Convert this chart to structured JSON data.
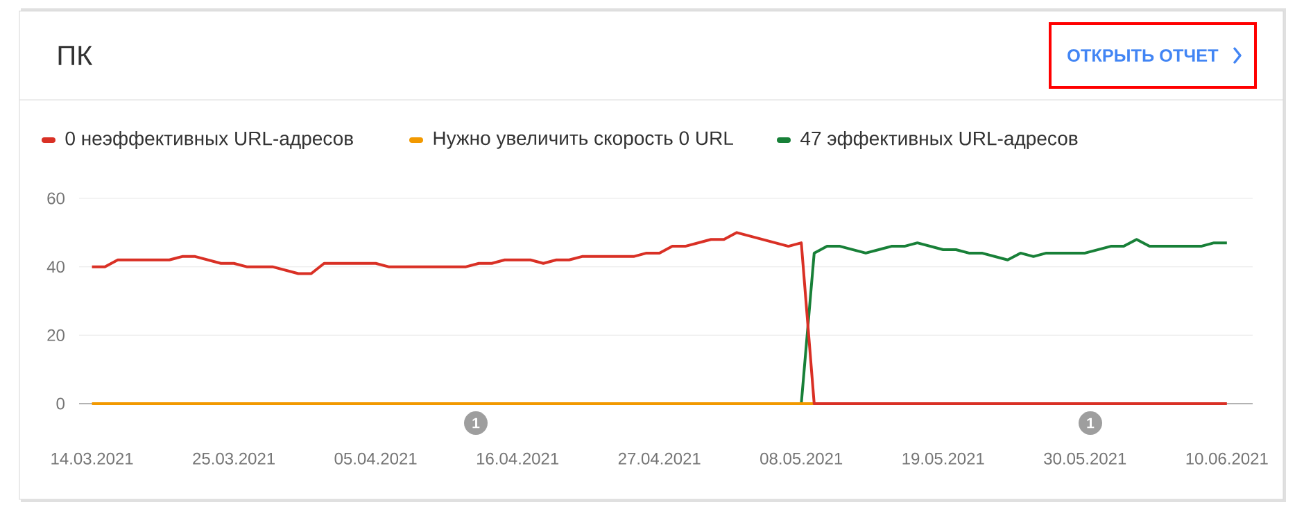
{
  "chart_data": {
    "type": "line",
    "title": "ПК",
    "annotations": [
      "ОТКРЫТЬ ОТЧЕТ",
      "1",
      "1"
    ],
    "xlim": [
      "2021-03-13",
      "2021-06-12"
    ],
    "ylim": [
      0,
      60
    ],
    "yticks": [
      0,
      20,
      40,
      60
    ],
    "xticks": [
      {
        "value": "2021-03-14",
        "label": "14.03.2021"
      },
      {
        "value": "2021-03-25",
        "label": "25.03.2021"
      },
      {
        "value": "2021-04-05",
        "label": "05.04.2021"
      },
      {
        "value": "2021-04-16",
        "label": "16.04.2021"
      },
      {
        "value": "2021-04-27",
        "label": "27.04.2021"
      },
      {
        "value": "2021-05-08",
        "label": "08.05.2021"
      },
      {
        "value": "2021-05-19",
        "label": "19.05.2021"
      },
      {
        "value": "2021-05-30",
        "label": "30.05.2021"
      },
      {
        "value": "2021-06-10",
        "label": "10.06.2021"
      }
    ],
    "grid": "y",
    "legend": "top",
    "line_style": "solid",
    "series": [
      {
        "name": "0 неэффективных URL-адресов",
        "color": "#d93025",
        "x": [
          "2021-03-14",
          "2021-03-15",
          "2021-03-16",
          "2021-03-20",
          "2021-03-21",
          "2021-03-22",
          "2021-03-24",
          "2021-03-25",
          "2021-03-26",
          "2021-03-28",
          "2021-03-30",
          "2021-03-31",
          "2021-04-01",
          "2021-04-05",
          "2021-04-06",
          "2021-04-12",
          "2021-04-13",
          "2021-04-14",
          "2021-04-15",
          "2021-04-17",
          "2021-04-18",
          "2021-04-19",
          "2021-04-20",
          "2021-04-21",
          "2021-04-25",
          "2021-04-26",
          "2021-04-27",
          "2021-04-28",
          "2021-04-29",
          "2021-05-01",
          "2021-05-02",
          "2021-05-03",
          "2021-05-07",
          "2021-05-08",
          "2021-05-09",
          "2021-06-10"
        ],
        "values": [
          40,
          40,
          42,
          42,
          43,
          43,
          41,
          41,
          40,
          40,
          38,
          38,
          41,
          41,
          40,
          40,
          41,
          41,
          42,
          42,
          41,
          42,
          42,
          43,
          43,
          44,
          44,
          46,
          46,
          48,
          48,
          50,
          46,
          47,
          0,
          0
        ]
      },
      {
        "name": "Нужно увеличить скорость 0 URL",
        "color": "#f29900",
        "x": [
          "2021-03-14",
          "2021-05-09"
        ],
        "values": [
          0,
          0
        ]
      },
      {
        "name": "47 эффективных URL-адресов",
        "color": "#188038",
        "x": [
          "2021-05-08",
          "2021-05-09",
          "2021-05-10",
          "2021-05-11",
          "2021-05-13",
          "2021-05-15",
          "2021-05-16",
          "2021-05-17",
          "2021-05-19",
          "2021-05-20",
          "2021-05-21",
          "2021-05-22",
          "2021-05-24",
          "2021-05-25",
          "2021-05-26",
          "2021-05-27",
          "2021-05-30",
          "2021-06-01",
          "2021-06-02",
          "2021-06-03",
          "2021-06-04",
          "2021-06-08",
          "2021-06-09",
          "2021-06-10"
        ],
        "values": [
          0,
          44,
          46,
          46,
          44,
          46,
          46,
          47,
          45,
          45,
          44,
          44,
          42,
          44,
          43,
          44,
          44,
          46,
          46,
          48,
          46,
          46,
          47,
          47
        ]
      }
    ]
  }
}
